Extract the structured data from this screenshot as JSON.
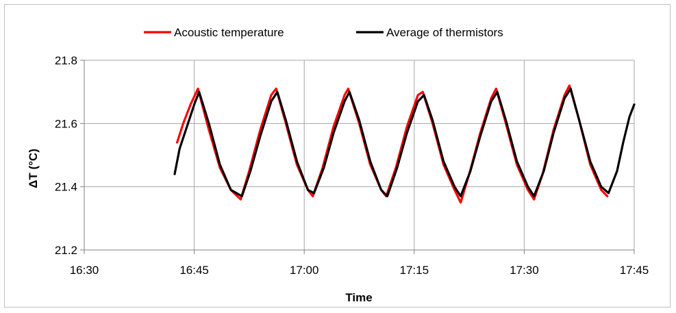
{
  "chart_data": {
    "type": "line",
    "title": "",
    "xlabel": "Time",
    "ylabel": "ΔT (°C)",
    "xlim": [
      "16:30",
      "17:45"
    ],
    "ylim": [
      21.2,
      21.8
    ],
    "x_ticks": [
      "16:30",
      "16:45",
      "17:00",
      "17:15",
      "17:30",
      "17:45"
    ],
    "y_ticks": [
      "21.2",
      "21.4",
      "21.6",
      "21.8"
    ],
    "grid": true,
    "legend_position": "top",
    "series": [
      {
        "name": "Acoustic temperature",
        "color": "#ff0000",
        "points": [
          [
            "16:42:40",
            21.54
          ],
          [
            "16:43:30",
            21.6
          ],
          [
            "16:44:30",
            21.66
          ],
          [
            "16:45:30",
            21.71
          ],
          [
            "16:47:00",
            21.58
          ],
          [
            "16:48:30",
            21.46
          ],
          [
            "16:50:00",
            21.39
          ],
          [
            "16:51:20",
            21.36
          ],
          [
            "16:52:30",
            21.45
          ],
          [
            "16:54:00",
            21.58
          ],
          [
            "16:55:30",
            21.69
          ],
          [
            "16:56:10",
            21.71
          ],
          [
            "16:57:30",
            21.6
          ],
          [
            "16:59:00",
            21.47
          ],
          [
            "17:00:30",
            21.39
          ],
          [
            "17:01:10",
            21.37
          ],
          [
            "17:02:30",
            21.46
          ],
          [
            "17:04:00",
            21.59
          ],
          [
            "17:05:30",
            21.69
          ],
          [
            "17:06:00",
            21.71
          ],
          [
            "17:07:30",
            21.6
          ],
          [
            "17:09:00",
            21.47
          ],
          [
            "17:10:30",
            21.39
          ],
          [
            "17:11:10",
            21.37
          ],
          [
            "17:12:30",
            21.46
          ],
          [
            "17:14:00",
            21.59
          ],
          [
            "17:15:30",
            21.69
          ],
          [
            "17:16:10",
            21.7
          ],
          [
            "17:17:30",
            21.6
          ],
          [
            "17:19:00",
            21.47
          ],
          [
            "17:20:30",
            21.39
          ],
          [
            "17:21:20",
            21.35
          ],
          [
            "17:22:30",
            21.44
          ],
          [
            "17:24:00",
            21.57
          ],
          [
            "17:25:30",
            21.68
          ],
          [
            "17:26:10",
            21.71
          ],
          [
            "17:27:30",
            21.6
          ],
          [
            "17:29:00",
            21.47
          ],
          [
            "17:30:30",
            21.39
          ],
          [
            "17:31:20",
            21.36
          ],
          [
            "17:32:30",
            21.44
          ],
          [
            "17:34:00",
            21.58
          ],
          [
            "17:35:30",
            21.69
          ],
          [
            "17:36:10",
            21.72
          ],
          [
            "17:37:30",
            21.61
          ],
          [
            "17:39:00",
            21.47
          ],
          [
            "17:40:30",
            21.39
          ],
          [
            "17:41:20",
            21.37
          ]
        ]
      },
      {
        "name": "Average of thermistors",
        "color": "#000000",
        "points": [
          [
            "16:42:20",
            21.44
          ],
          [
            "16:43:00",
            21.52
          ],
          [
            "16:44:00",
            21.59
          ],
          [
            "16:45:00",
            21.66
          ],
          [
            "16:45:40",
            21.7
          ],
          [
            "16:47:00",
            21.6
          ],
          [
            "16:48:30",
            21.47
          ],
          [
            "16:50:00",
            21.39
          ],
          [
            "16:51:30",
            21.37
          ],
          [
            "16:52:40",
            21.45
          ],
          [
            "16:54:00",
            21.56
          ],
          [
            "16:55:30",
            21.67
          ],
          [
            "16:56:20",
            21.7
          ],
          [
            "16:57:30",
            21.61
          ],
          [
            "16:59:00",
            21.48
          ],
          [
            "17:00:30",
            21.39
          ],
          [
            "17:01:20",
            21.38
          ],
          [
            "17:02:40",
            21.46
          ],
          [
            "17:04:00",
            21.57
          ],
          [
            "17:05:30",
            21.67
          ],
          [
            "17:06:10",
            21.7
          ],
          [
            "17:07:30",
            21.61
          ],
          [
            "17:09:00",
            21.48
          ],
          [
            "17:10:30",
            21.39
          ],
          [
            "17:11:20",
            21.37
          ],
          [
            "17:12:40",
            21.46
          ],
          [
            "17:14:00",
            21.57
          ],
          [
            "17:15:30",
            21.67
          ],
          [
            "17:16:20",
            21.69
          ],
          [
            "17:17:30",
            21.61
          ],
          [
            "17:19:00",
            21.48
          ],
          [
            "17:20:30",
            21.4
          ],
          [
            "17:21:20",
            21.37
          ],
          [
            "17:22:40",
            21.45
          ],
          [
            "17:24:00",
            21.56
          ],
          [
            "17:25:30",
            21.67
          ],
          [
            "17:26:20",
            21.7
          ],
          [
            "17:27:30",
            21.61
          ],
          [
            "17:29:00",
            21.48
          ],
          [
            "17:30:30",
            21.4
          ],
          [
            "17:31:20",
            21.37
          ],
          [
            "17:32:40",
            21.45
          ],
          [
            "17:34:00",
            21.57
          ],
          [
            "17:35:30",
            21.68
          ],
          [
            "17:36:20",
            21.71
          ],
          [
            "17:37:30",
            21.61
          ],
          [
            "17:39:00",
            21.48
          ],
          [
            "17:40:30",
            21.4
          ],
          [
            "17:41:30",
            21.38
          ],
          [
            "17:42:40",
            21.45
          ],
          [
            "17:43:30",
            21.54
          ],
          [
            "17:44:20",
            21.62
          ],
          [
            "17:45:00",
            21.66
          ]
        ]
      }
    ]
  }
}
